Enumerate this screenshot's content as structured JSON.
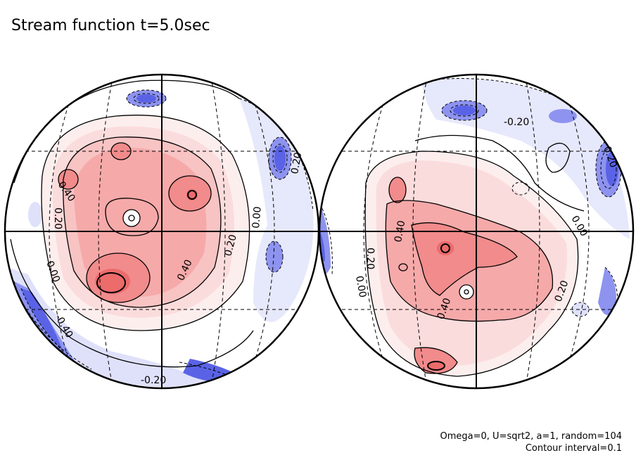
{
  "title": "Stream function t=5.0sec",
  "notes": {
    "params": "Omega=0, U=sqrt2, a=1, random=104",
    "interval": "Contour interval=0.1"
  },
  "colors": {
    "positive_strong": "#f07272",
    "positive_mid": "#f6a9a9",
    "positive_light": "#fbdcdc",
    "negative_strong": "#5a63e6",
    "negative_mid": "#8d93ef",
    "negative_light": "#dfe1fb"
  },
  "hemispheres": [
    {
      "labels": [
        {
          "text": "0.40",
          "rot": 55
        },
        {
          "text": "0.20",
          "rot": 90
        },
        {
          "text": "0.00",
          "rot": 70
        },
        {
          "text": "-0.40",
          "rot": 60
        },
        {
          "text": "-0.20",
          "rot": 0
        },
        {
          "text": "0.40",
          "rot": -65
        },
        {
          "text": "0.20",
          "rot": -75
        },
        {
          "text": "0.00",
          "rot": -85
        },
        {
          "text": "0.20",
          "rot": -80
        }
      ]
    },
    {
      "labels": [
        {
          "text": "-0.20",
          "rot": 0
        },
        {
          "text": "0.40",
          "rot": -80
        },
        {
          "text": "0.20",
          "rot": 90
        },
        {
          "text": "0.00",
          "rot": 80
        },
        {
          "text": "0.40",
          "rot": -70
        },
        {
          "text": "0.20",
          "rot": -70
        },
        {
          "text": "0.00",
          "rot": 60
        },
        {
          "text": "0.20",
          "rot": 70
        }
      ]
    }
  ]
}
